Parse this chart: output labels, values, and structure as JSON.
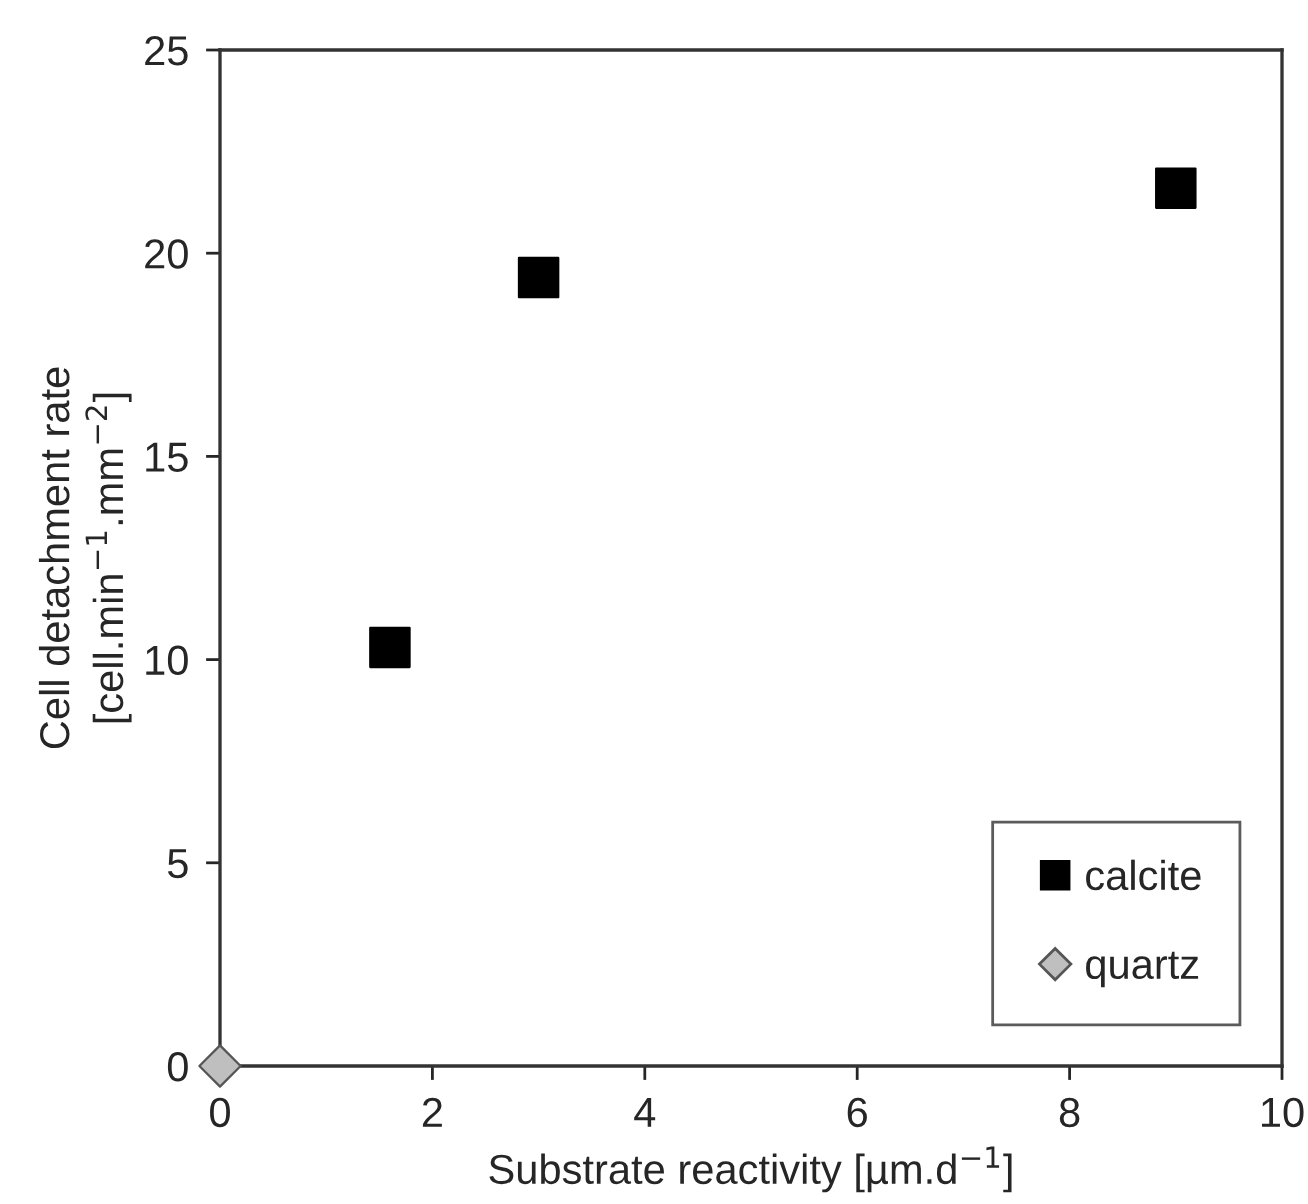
{
  "chart_data": {
    "type": "scatter",
    "xlabel": "Substrate reactivity [µm.d$^{−1}$]",
    "ylabel": "Cell detachment rate\n[cell.min$^{−1}$.mm$^{−2}$]",
    "series": [
      {
        "name": "calcite",
        "color": "#000000",
        "marker": "square",
        "x": [
          1.6,
          3.0,
          9.0
        ],
        "values": [
          10.3,
          19.4,
          21.6
        ]
      },
      {
        "name": "quartz",
        "color": "#bfbfbf",
        "marker": "diamond",
        "x": [
          0
        ],
        "values": [
          0
        ]
      }
    ],
    "xlim": [
      0,
      10
    ],
    "xticks": [
      0,
      2,
      4,
      6,
      8,
      10
    ],
    "ylim": [
      0,
      25
    ],
    "yticks": [
      0,
      5,
      10,
      15,
      20,
      25
    ],
    "grid": false,
    "legend": "bottom right"
  }
}
